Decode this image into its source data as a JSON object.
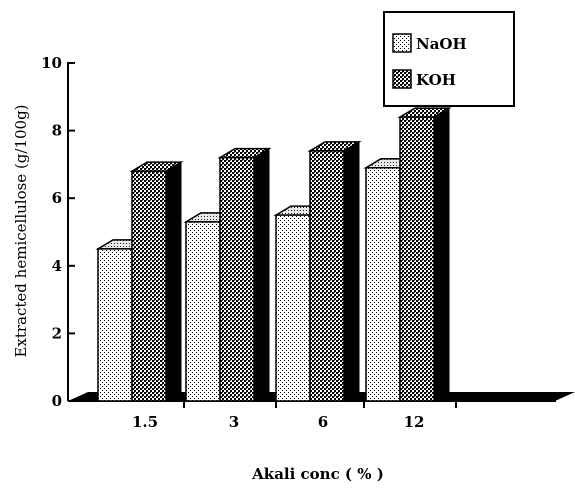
{
  "chart_data": {
    "type": "bar",
    "categories": [
      "1.5",
      "3",
      "6",
      "12"
    ],
    "series": [
      {
        "name": "NaOH",
        "values": [
          4.5,
          5.3,
          5.5,
          6.9
        ]
      },
      {
        "name": "KOH",
        "values": [
          6.8,
          7.2,
          7.4,
          8.4
        ]
      }
    ],
    "xlabel": "Akali conc ( % )",
    "ylabel": "Extracted hemicellulose (g/100g)",
    "ylim": [
      0,
      10
    ],
    "yticks": [
      "0",
      "2",
      "4",
      "6",
      "8",
      "10"
    ],
    "grid": false,
    "legend_position": "top-right",
    "style": "3d-bar",
    "colors": {
      "naoh_pattern": "light-dots",
      "koh_pattern": "dark-checker",
      "axis": "#000000"
    }
  }
}
